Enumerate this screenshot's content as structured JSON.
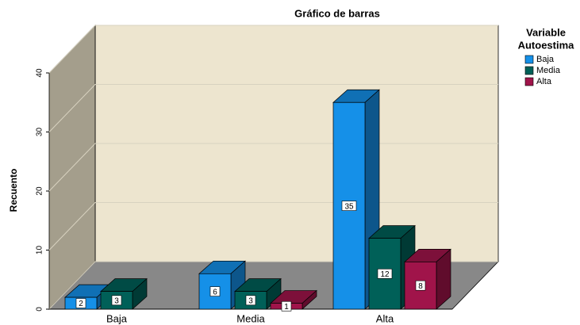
{
  "chart_data": {
    "type": "bar3d",
    "title": "Gráfico de barras",
    "y_label": "Recuento",
    "legend_title": [
      "Variable",
      "Autoestima"
    ],
    "categories": [
      "Baja",
      "Media",
      "Alta"
    ],
    "series": [
      {
        "name": "Baja",
        "color": "#1590e8",
        "values": [
          2,
          6,
          35
        ]
      },
      {
        "name": "Media",
        "color": "#006058",
        "values": [
          3,
          3,
          12
        ]
      },
      {
        "name": "Alta",
        "color": "#a0144a",
        "values": [
          null,
          1,
          8
        ]
      }
    ],
    "ylim": [
      0,
      40
    ],
    "yticks": [
      0,
      10,
      20,
      30,
      40
    ],
    "grid": true,
    "legend": "upper right"
  }
}
